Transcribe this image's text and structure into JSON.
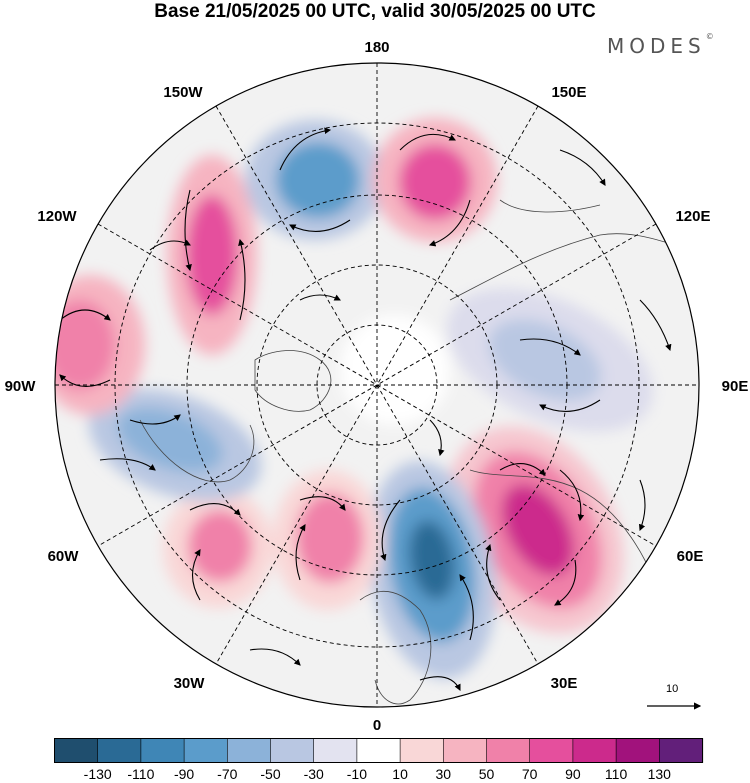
{
  "title": "Base 21/05/2025 00 UTC, valid 30/05/2025 00 UTC",
  "brand": "MODES",
  "brand_mark": "©",
  "map": {
    "projection": "north-polar-stereographic",
    "longitude_labels": {
      "l180": "180",
      "l150e": "150E",
      "l120e": "120E",
      "l90e": "90E",
      "l60e": "60E",
      "l30e": "30E",
      "l0": "0",
      "l30w": "30W",
      "l60w": "60W",
      "l90w": "90W",
      "l120w": "120W",
      "l150w": "150W"
    },
    "graticule": "dashed",
    "wind_vectors": "arrows",
    "vector_scale_label": "10"
  },
  "colorbar": {
    "colors": [
      "#1f4e6e",
      "#2a6a95",
      "#3f86b6",
      "#5b9ccb",
      "#8cb2d9",
      "#b9c7e2",
      "#e3e3f0",
      "#ffffff",
      "#f9d7d7",
      "#f6b4c1",
      "#f081a9",
      "#e54f9d",
      "#cc2a8c",
      "#a1127c",
      "#621f7a"
    ],
    "tick_labels": [
      "-130",
      "-110",
      "-90",
      "-70",
      "-50",
      "-30",
      "-10",
      "10",
      "30",
      "50",
      "70",
      "90",
      "110",
      "130"
    ]
  },
  "anomalies": [
    {
      "sign": "positive",
      "magnitude": "strong",
      "region": "over Siberia near 60E"
    },
    {
      "sign": "negative",
      "magnitude": "strong",
      "region": "over Scandinavia near 15E"
    },
    {
      "sign": "positive",
      "magnitude": "moderate",
      "region": "North Atlantic near 20W"
    },
    {
      "sign": "positive",
      "magnitude": "moderate",
      "region": "North Atlantic near 45W"
    },
    {
      "sign": "negative",
      "magnitude": "moderate",
      "region": "Hudson Bay near 75W"
    },
    {
      "sign": "positive",
      "magnitude": "moderate",
      "region": "North America near 100W"
    },
    {
      "sign": "positive",
      "magnitude": "moderate",
      "region": "Gulf of Alaska near 140W"
    },
    {
      "sign": "negative",
      "magnitude": "moderate",
      "region": "Bering Sea near 170W"
    },
    {
      "sign": "positive",
      "magnitude": "moderate",
      "region": "Kamchatka near 160E"
    },
    {
      "sign": "negative",
      "magnitude": "weak",
      "region": "central Asia near 90E"
    }
  ]
}
